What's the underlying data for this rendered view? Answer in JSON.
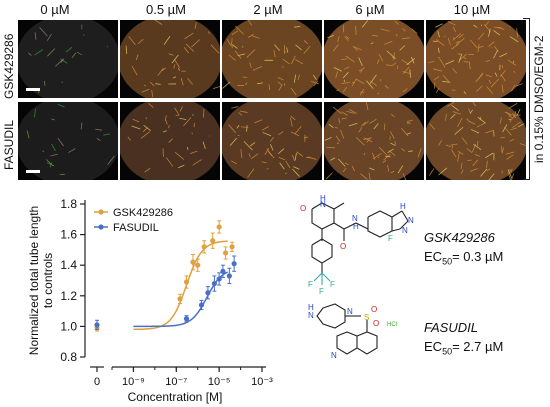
{
  "figure": {
    "concentrations": [
      "0 µM",
      "0.5 µM",
      "2 µM",
      "6 µM",
      "10 µM"
    ],
    "rows": [
      {
        "label": "GSK429286",
        "tones": [
          "#1e1e1e",
          "#5a3a1e",
          "#6b4422",
          "#7b4e27",
          "#7a4d26"
        ]
      },
      {
        "label": "FASUDIL",
        "tones": [
          "#1c1c1c",
          "#4a3020",
          "#5a3a22",
          "#6a4426",
          "#6e4727"
        ]
      }
    ],
    "condition_label": "in 0.15% DMSO/EGM-2"
  },
  "compounds": [
    {
      "name": "GSK429286",
      "ec50_prefix": "EC",
      "ec50_sub": "50",
      "ec50_value": "= 0.3 µM"
    },
    {
      "name": "FASUDIL",
      "ec50_prefix": "EC",
      "ec50_sub": "50",
      "ec50_value": "= 2.7 µM"
    }
  ],
  "structure_atoms": {
    "gsk_atoms": [
      "H",
      "N",
      "O",
      "O",
      "N",
      "H",
      "F",
      "H",
      "N",
      "N",
      "F",
      "F",
      "F"
    ],
    "fasudil_atoms": [
      "N",
      "H",
      "N",
      "S",
      "O",
      "O",
      "HCl",
      "N"
    ]
  },
  "chart_data": {
    "type": "scatter",
    "xlabel": "Concentration [M]",
    "ylabel": "Normalized total tube length to controls",
    "x_scale": "log",
    "xlim": [
      1e-10,
      0.001
    ],
    "ylim": [
      0.8,
      1.8
    ],
    "y_ticks": [
      "0.8",
      "1.0",
      "1.2",
      "1.4",
      "1.6",
      "1.8"
    ],
    "x_ticks": [
      "0",
      "10⁻⁹",
      "10⁻⁷",
      "10⁻⁵",
      "10⁻³"
    ],
    "legend_position": "top-left",
    "series": [
      {
        "name": "GSK429286",
        "color": "#e0a040",
        "marker": "circle",
        "control_point": {
          "x": 0,
          "y": 0.99,
          "err": 0.02
        },
        "points": [
          {
            "x": 1.5e-07,
            "y": 1.18,
            "err": 0.03
          },
          {
            "x": 3e-07,
            "y": 1.29,
            "err": 0.04
          },
          {
            "x": 6e-07,
            "y": 1.42,
            "err": 0.05
          },
          {
            "x": 1e-06,
            "y": 1.4,
            "err": 0.04
          },
          {
            "x": 2e-06,
            "y": 1.52,
            "err": 0.04
          },
          {
            "x": 5e-06,
            "y": 1.56,
            "err": 0.05
          },
          {
            "x": 1e-05,
            "y": 1.65,
            "err": 0.04
          },
          {
            "x": 2e-05,
            "y": 1.48,
            "err": 0.04
          },
          {
            "x": 4e-05,
            "y": 1.52,
            "err": 0.03
          }
        ],
        "fit": {
          "bottom": 0.98,
          "top": 1.56,
          "ec50": 3e-07,
          "hill": 1.2
        }
      },
      {
        "name": "FASUDIL",
        "color": "#4a6fc9",
        "marker": "circle",
        "control_point": {
          "x": 0,
          "y": 1.01,
          "err": 0.03
        },
        "points": [
          {
            "x": 3e-07,
            "y": 1.05,
            "err": 0.02
          },
          {
            "x": 1.5e-06,
            "y": 1.14,
            "err": 0.03
          },
          {
            "x": 3e-06,
            "y": 1.22,
            "err": 0.04
          },
          {
            "x": 6e-06,
            "y": 1.28,
            "err": 0.05
          },
          {
            "x": 1e-05,
            "y": 1.31,
            "err": 0.04
          },
          {
            "x": 1.5e-05,
            "y": 1.36,
            "err": 0.04
          },
          {
            "x": 3e-05,
            "y": 1.33,
            "err": 0.05
          },
          {
            "x": 5e-05,
            "y": 1.41,
            "err": 0.05
          }
        ],
        "fit": {
          "bottom": 1.0,
          "top": 1.38,
          "ec50": 2.7e-06,
          "hill": 1.2
        }
      }
    ]
  }
}
